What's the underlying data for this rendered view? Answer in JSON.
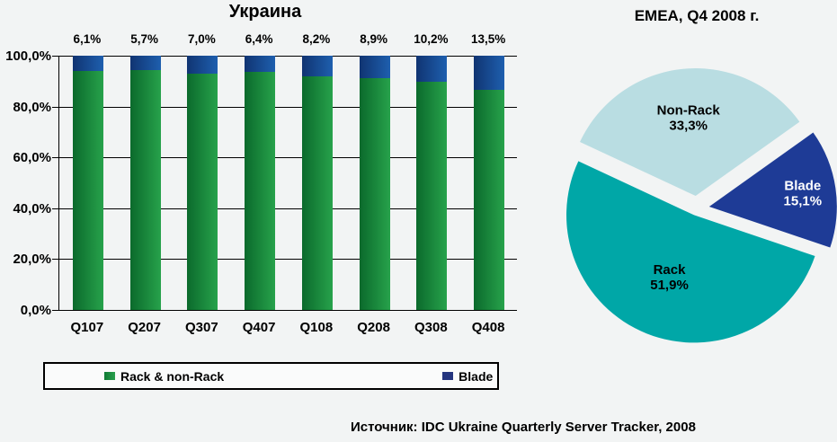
{
  "page": {
    "background": "#f2f4f4",
    "source_text": "Источник: IDC Ukraine Quarterly Server Tracker, 2008"
  },
  "chart_data": [
    {
      "type": "bar",
      "subtype": "stacked-percent-column",
      "title": "Украина",
      "categories": [
        "Q107",
        "Q207",
        "Q307",
        "Q407",
        "Q108",
        "Q208",
        "Q308",
        "Q408"
      ],
      "series": [
        {
          "name": "Rack & non-Rack",
          "values": [
            93.9,
            94.3,
            93.0,
            93.6,
            91.8,
            91.1,
            89.8,
            86.5
          ],
          "color_start": "#0b6a2c",
          "color_end": "#27a24b"
        },
        {
          "name": "Blade",
          "values": [
            6.1,
            5.7,
            7.0,
            6.4,
            8.2,
            8.9,
            10.2,
            13.5
          ],
          "color_start": "#103472",
          "color_end": "#1e5fae"
        }
      ],
      "bar_labels": [
        "6,1%",
        "5,7%",
        "7,0%",
        "6,4%",
        "8,2%",
        "8,9%",
        "10,2%",
        "13,5%"
      ],
      "y_ticks": [
        "100,0%",
        "80,0%",
        "60,0%",
        "40,0%",
        "20,0%",
        "0,0%"
      ],
      "ylim": [
        0,
        100
      ],
      "grid": true,
      "legend_position": "bottom"
    },
    {
      "type": "pie",
      "title": "EMEA, Q4 2008 г.",
      "slices": [
        {
          "label": "Non-Rack",
          "value": 33.3,
          "value_label": "33,3%",
          "color": "#b9dde2",
          "text_color": "#000000"
        },
        {
          "label": "Blade",
          "value": 15.1,
          "value_label": "15,1%",
          "color": "#1e3b96",
          "text_color": "#ffffff"
        },
        {
          "label": "Rack",
          "value": 51.9,
          "value_label": "51,9%",
          "color": "#00a7a7",
          "text_color": "#000000"
        }
      ],
      "start_angle_deg": 155,
      "exploded": true,
      "legend_position": "none"
    }
  ],
  "legend": {
    "items": [
      {
        "label": "Rack & non-Rack",
        "color": "#1d8f41"
      },
      {
        "label": "Blade",
        "color": "#24357f"
      }
    ]
  }
}
